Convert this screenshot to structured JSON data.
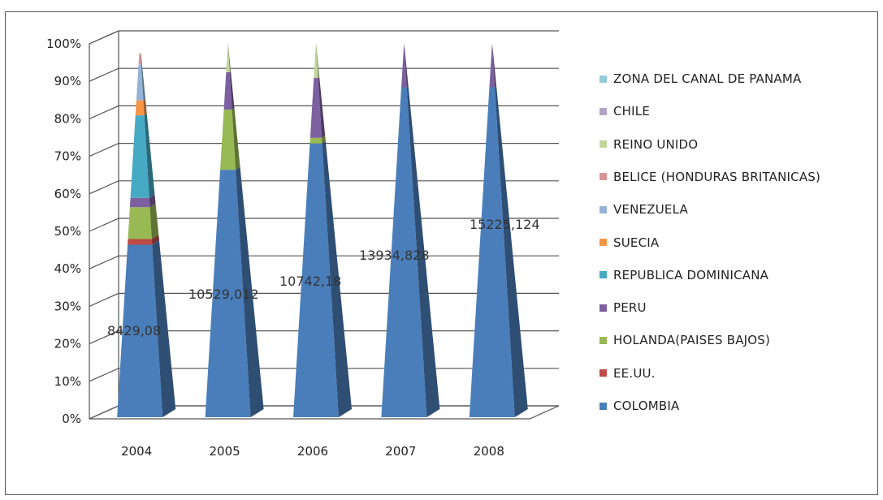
{
  "chart_data": {
    "type": "bar",
    "style": "3d-stacked-pyramid-percent",
    "categories": [
      "2004",
      "2005",
      "2006",
      "2007",
      "2008"
    ],
    "yaxis": {
      "ticks": [
        "0%",
        "10%",
        "20%",
        "30%",
        "40%",
        "50%",
        "60%",
        "70%",
        "80%",
        "90%",
        "100%"
      ],
      "ylim": [
        0,
        100
      ]
    },
    "grid": true,
    "legend_position": "right",
    "series": [
      {
        "name": "COLOMBIA",
        "color": "#4a7ebb",
        "values": [
          46,
          66,
          73,
          88,
          88
        ]
      },
      {
        "name": "EE.UU.",
        "color": "#be4b48",
        "values": [
          1.5,
          0,
          0,
          0,
          0
        ]
      },
      {
        "name": "HOLANDA(PAISES BAJOS)",
        "color": "#98b954",
        "values": [
          8.5,
          16,
          1.5,
          0,
          0
        ]
      },
      {
        "name": "PERU",
        "color": "#7d60a0",
        "values": [
          2.5,
          10,
          16,
          11,
          11
        ]
      },
      {
        "name": "REPUBLICA DOMINICANA",
        "color": "#46aac5",
        "values": [
          22,
          0,
          0,
          0,
          0
        ]
      },
      {
        "name": "SUECIA",
        "color": "#f79646",
        "values": [
          4,
          0,
          0,
          0,
          0
        ]
      },
      {
        "name": "VENEZUELA",
        "color": "#95b3d7",
        "values": [
          9.5,
          0,
          0,
          0,
          0
        ]
      },
      {
        "name": "BELICE (HONDURAS BRITANICAS)",
        "color": "#d99694",
        "values": [
          3,
          0,
          0,
          0,
          0
        ]
      },
      {
        "name": "REINO UNIDO",
        "color": "#c3d69b",
        "values": [
          0,
          8,
          9.5,
          1,
          1
        ]
      },
      {
        "name": "CHILE",
        "color": "#b3a2c7",
        "values": [
          0,
          0,
          0,
          0,
          0
        ]
      },
      {
        "name": "ZONA DEL CANAL DE PANAMA",
        "color": "#93cddd",
        "values": [
          0,
          0,
          0,
          0,
          0
        ]
      }
    ],
    "data_labels": [
      "8429,08",
      "10529,012",
      "10742,18",
      "13934,828",
      "15225,124"
    ]
  }
}
